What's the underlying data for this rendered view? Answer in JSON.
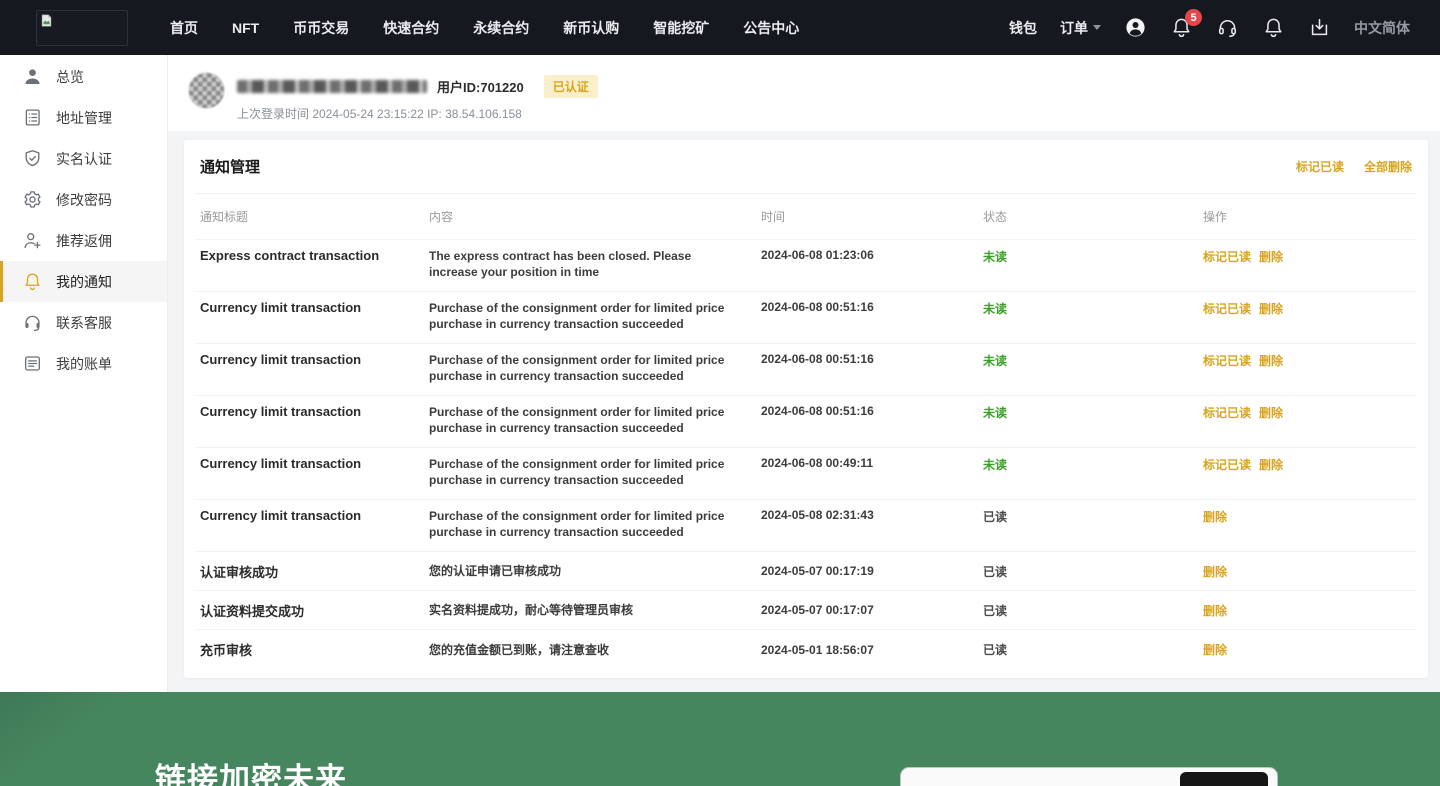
{
  "colors": {
    "gold": "#d9a521",
    "green": "#3aa327",
    "footer_green": "#46865f",
    "badge_red": "#e6454d",
    "nav_bg": "#15181e"
  },
  "nav": {
    "menu": [
      "首页",
      "NFT",
      "币币交易",
      "快速合约",
      "永续合约",
      "新币认购",
      "智能挖矿",
      "公告中心"
    ],
    "wallet_label": "钱包",
    "orders_label": "订单",
    "notification_badge_count": "5",
    "language_label": "中文简体"
  },
  "sidebar": {
    "items": [
      {
        "label": "总览",
        "icon": "user-icon",
        "active": false
      },
      {
        "label": "地址管理",
        "icon": "address-icon",
        "active": false
      },
      {
        "label": "实名认证",
        "icon": "shield-icon",
        "active": false
      },
      {
        "label": "修改密码",
        "icon": "gear-icon",
        "active": false
      },
      {
        "label": "推荐返佣",
        "icon": "user-plus-icon",
        "active": false
      },
      {
        "label": "我的通知",
        "icon": "bell-icon",
        "active": true
      },
      {
        "label": "联系客服",
        "icon": "headset-icon",
        "active": false
      },
      {
        "label": "我的账单",
        "icon": "bill-icon",
        "active": false
      }
    ]
  },
  "user": {
    "id_label": "用户ID:",
    "id": "701220",
    "verified_badge": "已认证",
    "last_login": "上次登录时间 2024-05-24 23:15:22  IP: 38.54.106.158"
  },
  "panel": {
    "title": "通知管理",
    "mark_all_read": "标记已读",
    "delete_all": "全部删除",
    "columns": [
      "通知标题",
      "内容",
      "时间",
      "状态",
      "操作"
    ],
    "status_unread": "未读",
    "status_read": "已读",
    "action_mark_read": "标记已读",
    "action_delete": "删除",
    "rows": [
      {
        "title": "Express contract transaction",
        "content": "The express contract has been closed. Please increase your position in time",
        "time": "2024-06-08 01:23:06",
        "status": "unread"
      },
      {
        "title": "Currency limit transaction",
        "content": "Purchase of the consignment order for limited price purchase in currency transaction succeeded",
        "time": "2024-06-08 00:51:16",
        "status": "unread"
      },
      {
        "title": "Currency limit transaction",
        "content": "Purchase of the consignment order for limited price purchase in currency transaction succeeded",
        "time": "2024-06-08 00:51:16",
        "status": "unread"
      },
      {
        "title": "Currency limit transaction",
        "content": "Purchase of the consignment order for limited price purchase in currency transaction succeeded",
        "time": "2024-06-08 00:51:16",
        "status": "unread"
      },
      {
        "title": "Currency limit transaction",
        "content": "Purchase of the consignment order for limited price purchase in currency transaction succeeded",
        "time": "2024-06-08 00:49:11",
        "status": "unread"
      },
      {
        "title": "Currency limit transaction",
        "content": "Purchase of the consignment order for limited price purchase in currency transaction succeeded",
        "time": "2024-05-08 02:31:43",
        "status": "read"
      },
      {
        "title": "认证审核成功",
        "content": "您的认证申请已审核成功",
        "time": "2024-05-07 00:17:19",
        "status": "read"
      },
      {
        "title": "认证资料提交成功",
        "content": "实名资料提成功，耐心等待管理员审核",
        "time": "2024-05-07 00:17:07",
        "status": "read"
      },
      {
        "title": "充币审核",
        "content": "您的充值金额已到账，请注意查收",
        "time": "2024-05-01 18:56:07",
        "status": "read"
      }
    ]
  },
  "footer": {
    "slogan": "链接加密未来"
  }
}
